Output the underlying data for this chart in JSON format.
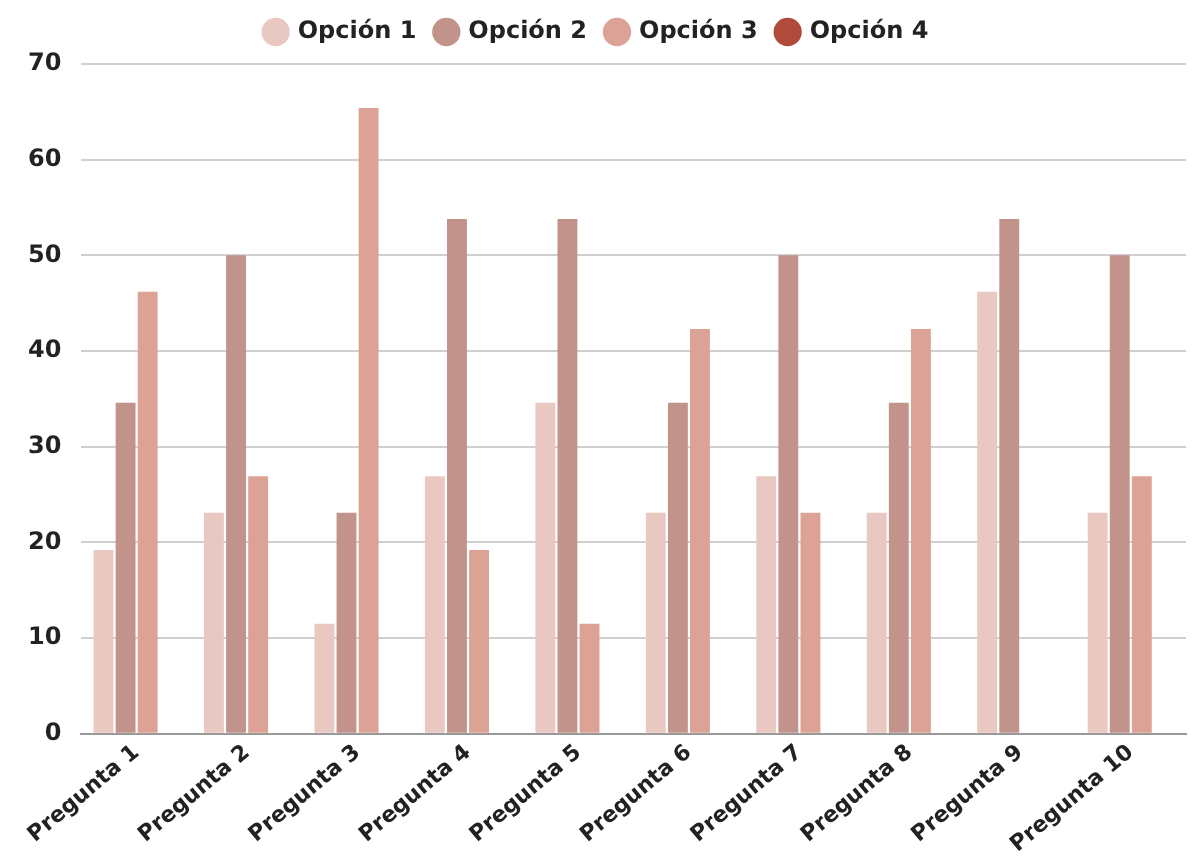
{
  "chart_data": {
    "type": "bar",
    "categories": [
      "Pregunta 1",
      "Pregunta 2",
      "Pregunta 3",
      "Pregunta 4",
      "Pregunta 5",
      "Pregunta 6",
      "Pregunta 7",
      "Pregunta 8",
      "Pregunta 9",
      "Pregunta 10"
    ],
    "series": [
      {
        "name": "Opción 1",
        "color": "#e8c8c1",
        "values": [
          19.2,
          23.1,
          11.5,
          26.9,
          34.6,
          23.1,
          26.9,
          23.1,
          46.2,
          23.1
        ]
      },
      {
        "name": "Opción 2",
        "color": "#c1938a",
        "values": [
          34.6,
          50,
          23.1,
          53.8,
          53.8,
          34.6,
          50,
          34.6,
          53.8,
          50
        ]
      },
      {
        "name": "Opción 3",
        "color": "#dba295",
        "values": [
          46.2,
          26.9,
          65.4,
          19.2,
          11.5,
          42.3,
          23.1,
          42.3,
          0,
          26.9
        ]
      },
      {
        "name": "Opción 4",
        "color": "#b04b3b",
        "values": [
          0,
          0,
          0,
          0,
          0,
          0,
          0,
          0,
          0,
          0
        ]
      }
    ],
    "ylim": [
      0,
      70
    ],
    "yticks": [
      0,
      10,
      20,
      30,
      40,
      50,
      60,
      70
    ],
    "grid": "y",
    "legend": "top"
  }
}
